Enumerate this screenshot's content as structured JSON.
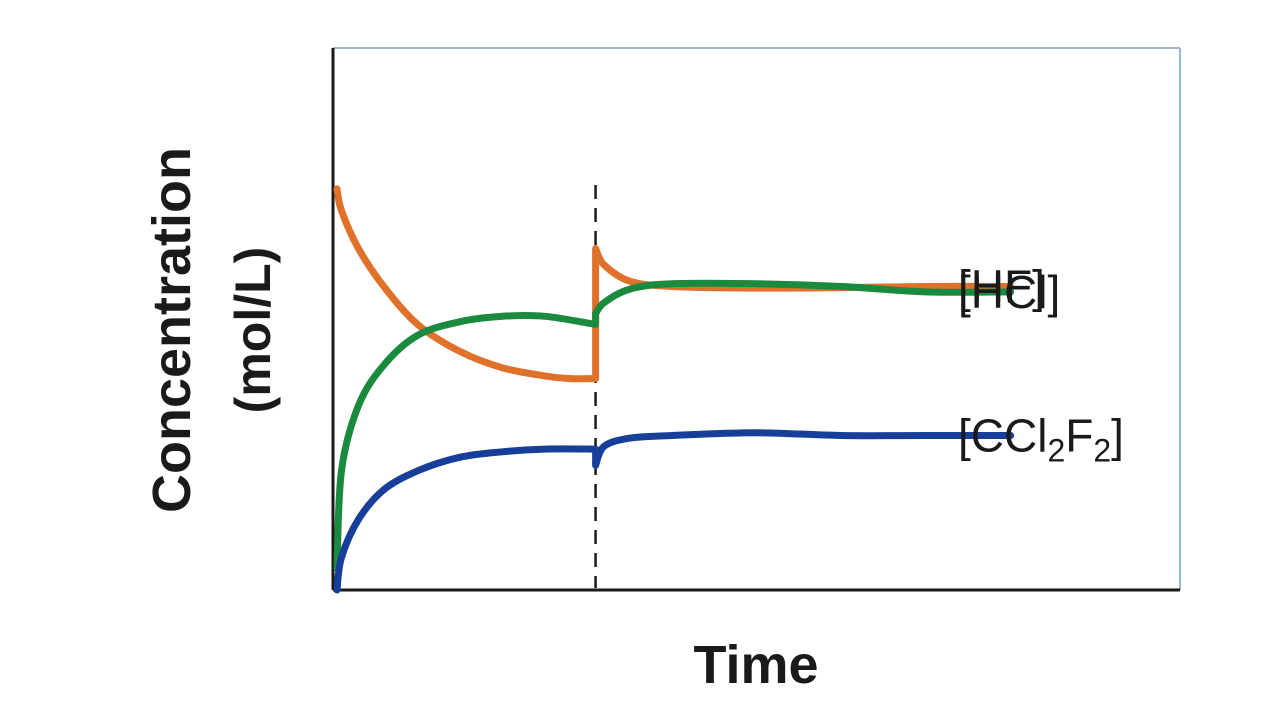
{
  "chart_data": {
    "type": "line",
    "title": "",
    "xlabel": "Time",
    "ylabel_line1": "Concentration",
    "ylabel_line2": "(mol/L)",
    "xlim": [
      0,
      100
    ],
    "ylim": [
      0,
      100
    ],
    "ticks_shown": false,
    "grid": false,
    "perturbation": {
      "x": 31,
      "style": "dashed-vertical"
    },
    "series": [
      {
        "name": "[HF]",
        "label_parts": {
          "base": "[HF]"
        },
        "color": "#e0712a",
        "x": [
          0,
          1,
          3,
          6,
          10,
          15,
          20,
          25,
          28,
          31,
          31,
          32,
          35,
          40,
          50,
          60,
          70,
          80
        ],
        "y": [
          74,
          70,
          63,
          56,
          49,
          44,
          41,
          39.5,
          39,
          39,
          63,
          60,
          57,
          56,
          55.7,
          55.8,
          56,
          56
        ]
      },
      {
        "name": "[HCl]",
        "label_parts": {
          "base": "[HCl]"
        },
        "color": "#1a8a3e",
        "x": [
          0,
          1,
          3,
          6,
          10,
          15,
          20,
          25,
          31,
          31,
          32,
          35,
          40,
          50,
          60,
          70,
          80
        ],
        "y": [
          4,
          22,
          34,
          41.5,
          47,
          49.5,
          50.5,
          50.5,
          49,
          51,
          53,
          55.5,
          56.5,
          56.5,
          56,
          55,
          55
        ]
      },
      {
        "name": "[CCl2F2]",
        "label_parts": {
          "base": "[CCl",
          "sub1": "2",
          "mid": "F",
          "sub2": "2",
          "end": "]"
        },
        "color": "#173f9a",
        "x": [
          0,
          1,
          3,
          6,
          10,
          15,
          20,
          25,
          31,
          31,
          32,
          35,
          40,
          50,
          60,
          70,
          80
        ],
        "y": [
          0,
          6,
          13,
          18.5,
          22,
          24.5,
          25.5,
          26,
          26,
          23,
          26.5,
          28,
          28.5,
          29,
          28.5,
          28.5,
          28.5
        ]
      }
    ],
    "colors": {
      "frame_top_right": "#9ab5d6",
      "axes": "#1a1a1a",
      "dashed_line": "#1a1a1a"
    }
  }
}
